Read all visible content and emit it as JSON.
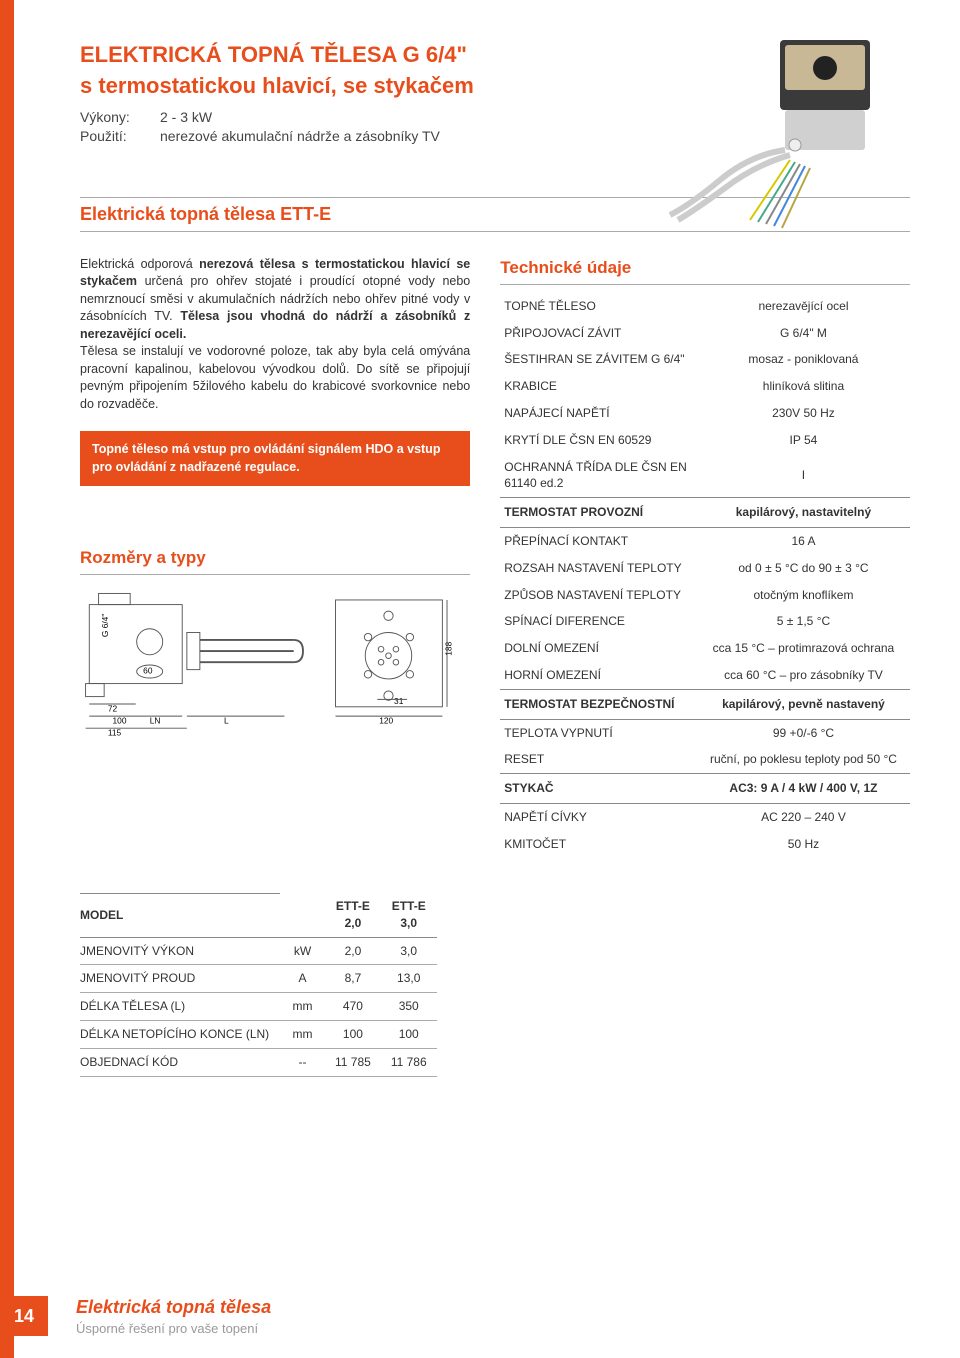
{
  "colors": {
    "accent": "#e84e1b",
    "text": "#333333",
    "muted": "#999999",
    "border": "#888888",
    "bg": "#ffffff"
  },
  "header": {
    "title_line1": "ELEKTRICKÁ TOPNÁ TĚLESA G 6/4\"",
    "title_line2": "s termostatickou hlavicí, se stykačem",
    "power_label": "Výkony:",
    "power_value": "2 - 3 kW",
    "use_label": "Použití:",
    "use_value": "nerezové akumulační nádrže a zásobníky TV"
  },
  "section_title": "Elektrická topná tělesa ETT-E",
  "body": {
    "p1_a": "Elektrická odporová ",
    "p1_b": "nerezová tělesa s termostatickou hlavicí se stykačem",
    "p1_c": " určená pro ohřev stojaté i proudící otopné vody nebo nemrznoucí směsi v akumulačních nádržích nebo ohřev pitné vody v zásobnících TV. ",
    "p1_d": "Tělesa jsou vhodná do nádrží a zásobníků z nerezavějící oceli.",
    "p2": "Tělesa se instalují ve vodorovné poloze, tak aby byla celá omývána pracovní kapalinou, kabelovou vývodkou dolů. Do sítě se připojují pevným připojením 5žilového kabelu do krabicové svorkovnice nebo do rozvaděče.",
    "callout": "Topné těleso má vstup pro ovládání signálem HDO a vstup pro ovládání z nadřazené regulace."
  },
  "dims_title": "Rozměry a typy",
  "tech_title": "Technické údaje",
  "tech": [
    {
      "k": "TOPNÉ TĚLESO",
      "v": "nerezavějící ocel"
    },
    {
      "k": "PŘIPOJOVACÍ ZÁVIT",
      "v": "G 6/4\" M"
    },
    {
      "k": "ŠESTIHRAN SE ZÁVITEM G 6/4\"",
      "v": "mosaz - poniklovaná"
    },
    {
      "k": "KRABICE",
      "v": "hliníková slitina"
    },
    {
      "k": "NAPÁJECÍ NAPĚTÍ",
      "v": "230V 50 Hz"
    },
    {
      "k": "KRYTÍ DLE ČSN EN 60529",
      "v": "IP 54"
    },
    {
      "k": "OCHRANNÁ TŘÍDA DLE ČSN EN 61140 ed.2",
      "v": "I"
    }
  ],
  "tech_sec1": {
    "k": "TERMOSTAT PROVOZNÍ",
    "v": "kapilárový, nastavitelný"
  },
  "tech2": [
    {
      "k": "PŘEPÍNACÍ KONTAKT",
      "v": "16 A"
    },
    {
      "k": "ROZSAH NASTAVENÍ TEPLOTY",
      "v": "od 0 ± 5 °C do 90 ± 3 °C"
    },
    {
      "k": "ZPŮSOB NASTAVENÍ TEPLOTY",
      "v": "otočným knoflíkem"
    },
    {
      "k": "SPÍNACÍ DIFERENCE",
      "v": "5 ± 1,5 °C"
    },
    {
      "k": "DOLNÍ OMEZENÍ",
      "v": "cca 15 °C – protimrazová ochrana"
    },
    {
      "k": "HORNÍ OMEZENÍ",
      "v": "cca 60 °C – pro zásobníky TV"
    }
  ],
  "tech_sec2": {
    "k": "TERMOSTAT BEZPEČNOSTNÍ",
    "v": "kapilárový, pevně nastavený"
  },
  "tech3": [
    {
      "k": "TEPLOTA VYPNUTÍ",
      "v": "99 +0/-6 °C"
    },
    {
      "k": "RESET",
      "v": "ruční, po poklesu teploty pod 50 °C"
    }
  ],
  "tech_sec3": {
    "k": "STYKAČ",
    "v": "AC3: 9 A / 4 kW / 400 V, 1Z"
  },
  "tech4": [
    {
      "k": "NAPĚTÍ CÍVKY",
      "v": "AC 220 – 240 V"
    },
    {
      "k": "KMITOČET",
      "v": "50 Hz"
    }
  ],
  "models": {
    "head_model": "MODEL",
    "cols": [
      "ETT-E 2,0",
      "ETT-E 3,0"
    ],
    "rows": [
      {
        "label": "JMENOVITÝ VÝKON",
        "unit": "kW",
        "v": [
          "2,0",
          "3,0"
        ]
      },
      {
        "label": "JMENOVITÝ PROUD",
        "unit": "A",
        "v": [
          "8,7",
          "13,0"
        ]
      },
      {
        "label": "DÉLKA TĚLESA (L)",
        "unit": "mm",
        "v": [
          "470",
          "350"
        ]
      },
      {
        "label": "DÉLKA NETOPÍCÍHO KONCE (LN)",
        "unit": "mm",
        "v": [
          "100",
          "100"
        ]
      },
      {
        "label": "OBJEDNACÍ KÓD",
        "unit": "--",
        "v": [
          "11 785",
          "11 786"
        ]
      }
    ]
  },
  "diagram_labels": {
    "g64": "G 6/4\"",
    "d60": "60",
    "d72": "72",
    "d100": "100",
    "d115": "115",
    "LN": "LN",
    "L": "L",
    "d31": "31",
    "d120": "120",
    "d188": "188"
  },
  "footer": {
    "page": "14",
    "title": "Elektrická topná tělesa",
    "sub": "Úsporné řešení pro vaše topení"
  }
}
